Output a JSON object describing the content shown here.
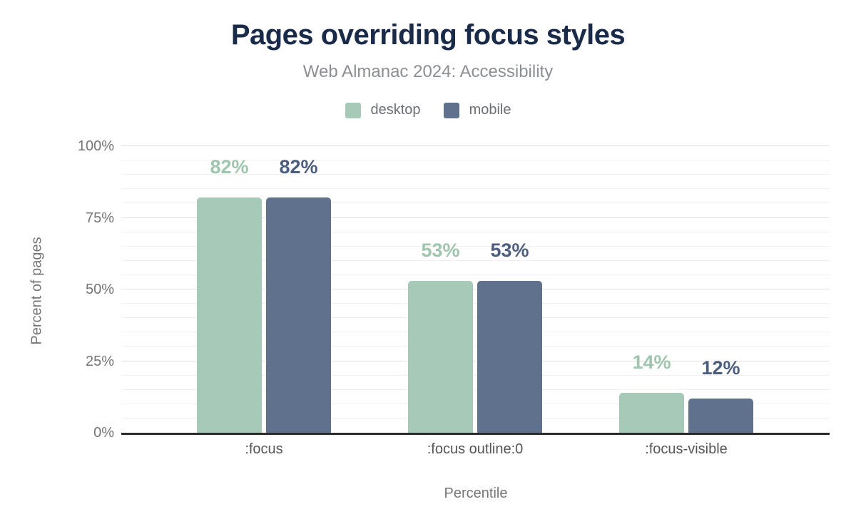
{
  "title": "Pages overriding focus styles",
  "subtitle": "Web Almanac 2024: Accessibility",
  "chart_data": {
    "type": "bar",
    "categories": [
      ":focus",
      ":focus outline:0",
      ":focus-visible"
    ],
    "series": [
      {
        "name": "desktop",
        "values": [
          82,
          53,
          14
        ],
        "labels": [
          "82%",
          "53%",
          "14%"
        ],
        "color": "#a7c9b8",
        "label_color": "#9fc5af"
      },
      {
        "name": "mobile",
        "values": [
          82,
          53,
          12
        ],
        "labels": [
          "82%",
          "53%",
          "12%"
        ],
        "color": "#5f718d",
        "label_color": "#4c5e7e"
      }
    ],
    "xlabel": "Percentile",
    "ylabel": "Percent of pages",
    "ylim": [
      0,
      100
    ],
    "yticks": [
      0,
      25,
      50,
      75,
      100
    ],
    "ytick_labels": [
      "0%",
      "25%",
      "50%",
      "75%",
      "100%"
    ],
    "minor_grid_step": 5,
    "major_grid_step": 25,
    "grid": true,
    "legend_position": "top"
  },
  "colors": {
    "background": "#ffffff",
    "title": "#1a2b49",
    "subtitle": "#8b8f93",
    "legend_text": "#6b6f76",
    "tick_text": "#757575",
    "category_text": "#565656",
    "axis_title_text": "#757575",
    "axis_line": "#2b2b2b",
    "grid_major": "#e4e2e0",
    "grid_minor": "#f4f0ef"
  }
}
